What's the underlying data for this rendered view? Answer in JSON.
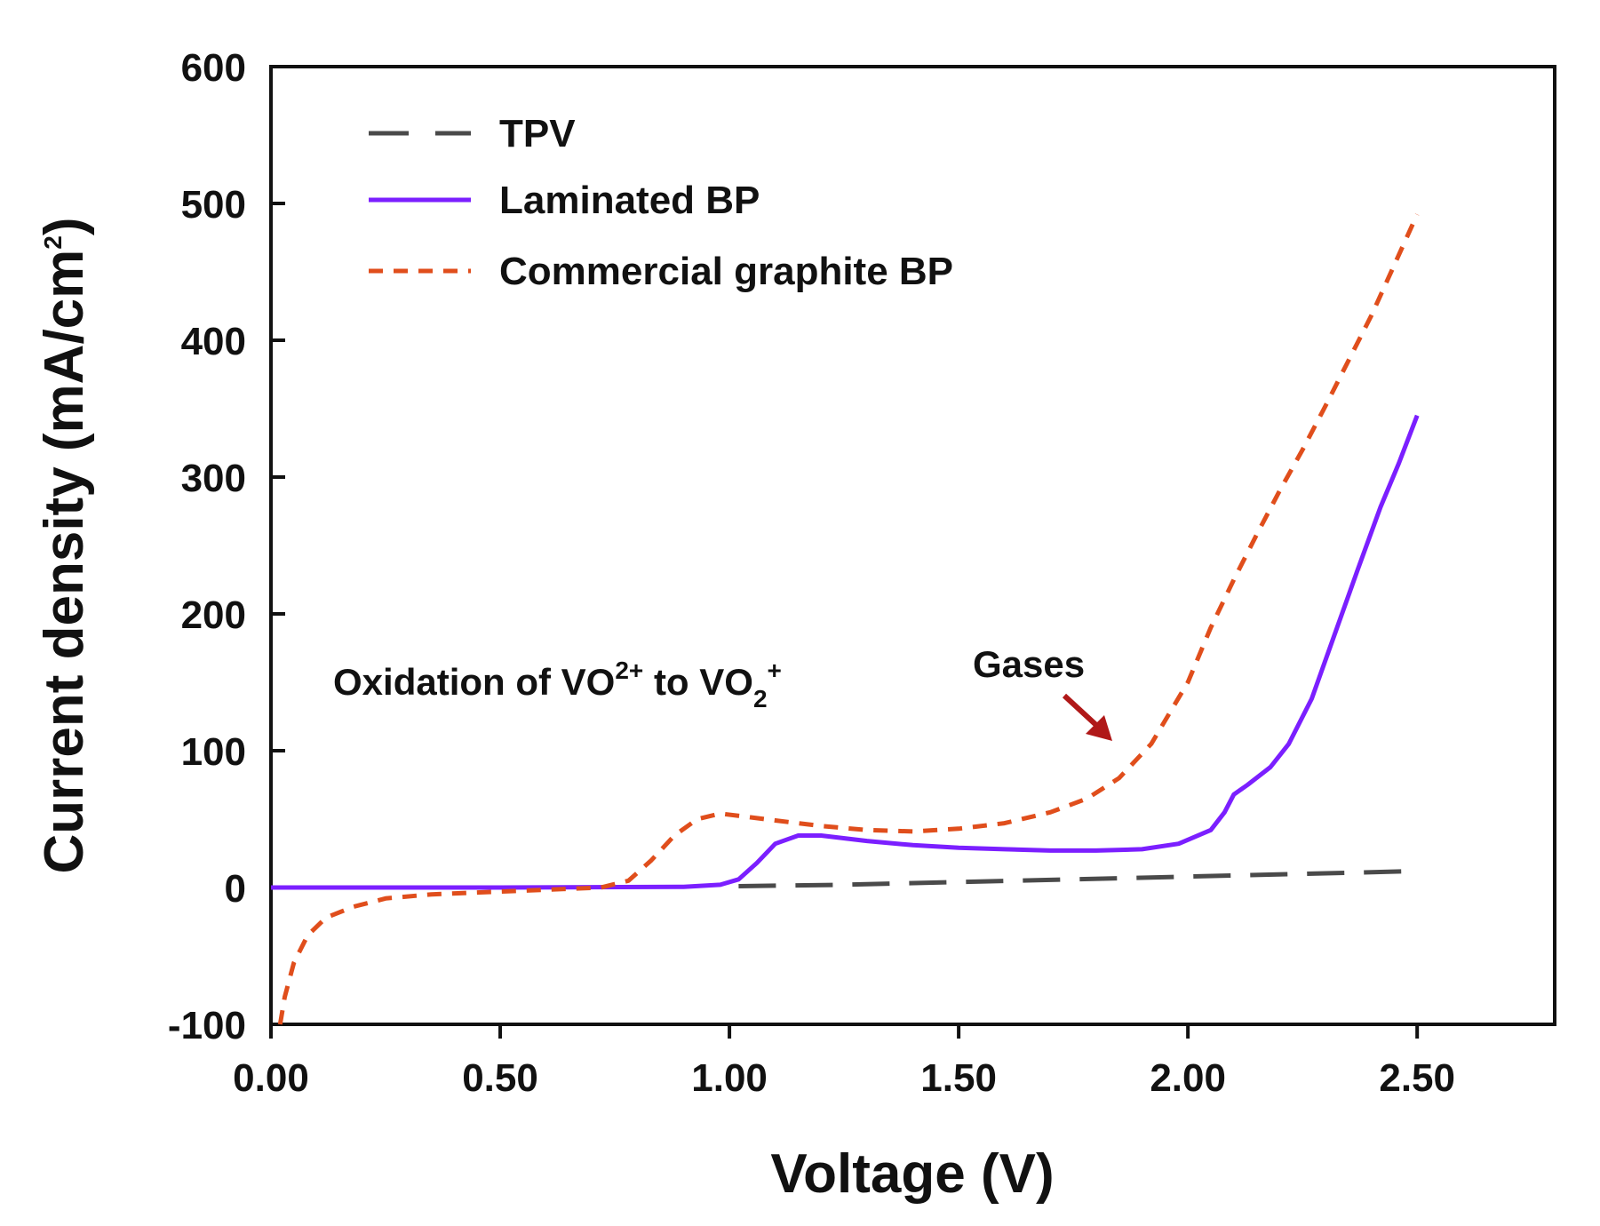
{
  "chart_data": {
    "type": "line",
    "title": "",
    "xlabel": "Voltage (V)",
    "ylabel": {
      "main": "Current density (mA/cm",
      "sup": "2",
      "close": ")"
    },
    "xlim": [
      0,
      2.8
    ],
    "ylim": [
      -100,
      600
    ],
    "xticks": [
      0,
      0.5,
      1.0,
      1.5,
      2.0,
      2.5
    ],
    "xtick_labels": [
      "0.00",
      "0.50",
      "1.00",
      "1.50",
      "2.00",
      "2.50"
    ],
    "yticks": [
      -100,
      0,
      100,
      200,
      300,
      400,
      500,
      600
    ],
    "ytick_labels": [
      "-100",
      "0",
      "100",
      "200",
      "300",
      "400",
      "500",
      "600"
    ],
    "legend_position": "top-left",
    "series": [
      {
        "name": "TPV",
        "color": "#4a4a4a",
        "style": "long-dash",
        "points": [
          [
            1.02,
            1
          ],
          [
            1.25,
            2
          ],
          [
            1.5,
            4
          ],
          [
            1.75,
            6
          ],
          [
            2.0,
            8
          ],
          [
            2.25,
            10
          ],
          [
            2.5,
            12
          ]
        ]
      },
      {
        "name": "Laminated BP",
        "color": "#7b1fff",
        "style": "solid",
        "points": [
          [
            0.0,
            0
          ],
          [
            0.5,
            0
          ],
          [
            0.9,
            0.5
          ],
          [
            0.98,
            2
          ],
          [
            1.02,
            6
          ],
          [
            1.06,
            18
          ],
          [
            1.1,
            32
          ],
          [
            1.15,
            38
          ],
          [
            1.2,
            38
          ],
          [
            1.3,
            34
          ],
          [
            1.4,
            31
          ],
          [
            1.5,
            29
          ],
          [
            1.6,
            28
          ],
          [
            1.7,
            27
          ],
          [
            1.8,
            27
          ],
          [
            1.9,
            28
          ],
          [
            1.98,
            32
          ],
          [
            2.05,
            42
          ],
          [
            2.08,
            55
          ],
          [
            2.1,
            68
          ],
          [
            2.13,
            75
          ],
          [
            2.18,
            88
          ],
          [
            2.22,
            105
          ],
          [
            2.27,
            138
          ],
          [
            2.32,
            185
          ],
          [
            2.37,
            232
          ],
          [
            2.42,
            278
          ],
          [
            2.46,
            310
          ],
          [
            2.5,
            345
          ]
        ]
      },
      {
        "name": "Commercial graphite BP",
        "color": "#e04e1c",
        "style": "short-dash",
        "points": [
          [
            0.02,
            -100
          ],
          [
            0.03,
            -80
          ],
          [
            0.05,
            -55
          ],
          [
            0.08,
            -35
          ],
          [
            0.12,
            -22
          ],
          [
            0.18,
            -14
          ],
          [
            0.25,
            -8
          ],
          [
            0.35,
            -5
          ],
          [
            0.5,
            -3
          ],
          [
            0.65,
            -1
          ],
          [
            0.72,
            0
          ],
          [
            0.78,
            5
          ],
          [
            0.83,
            20
          ],
          [
            0.88,
            38
          ],
          [
            0.93,
            50
          ],
          [
            0.98,
            54
          ],
          [
            1.03,
            52
          ],
          [
            1.1,
            49
          ],
          [
            1.2,
            45
          ],
          [
            1.3,
            42
          ],
          [
            1.4,
            41
          ],
          [
            1.5,
            43
          ],
          [
            1.6,
            47
          ],
          [
            1.7,
            55
          ],
          [
            1.78,
            65
          ],
          [
            1.85,
            80
          ],
          [
            1.92,
            105
          ],
          [
            2.0,
            150
          ],
          [
            2.05,
            190
          ],
          [
            2.1,
            225
          ],
          [
            2.15,
            258
          ],
          [
            2.2,
            290
          ],
          [
            2.25,
            320
          ],
          [
            2.3,
            352
          ],
          [
            2.35,
            385
          ],
          [
            2.4,
            418
          ],
          [
            2.45,
            455
          ],
          [
            2.5,
            492
          ]
        ]
      }
    ],
    "annotations": {
      "oxidation": {
        "prefix": "Oxidation of VO",
        "sup1": "2+",
        "middle": " to VO",
        "sub": "2",
        "sup2": "+"
      },
      "gases": {
        "text": "Gases",
        "arrow_color": "#b01818"
      }
    }
  }
}
